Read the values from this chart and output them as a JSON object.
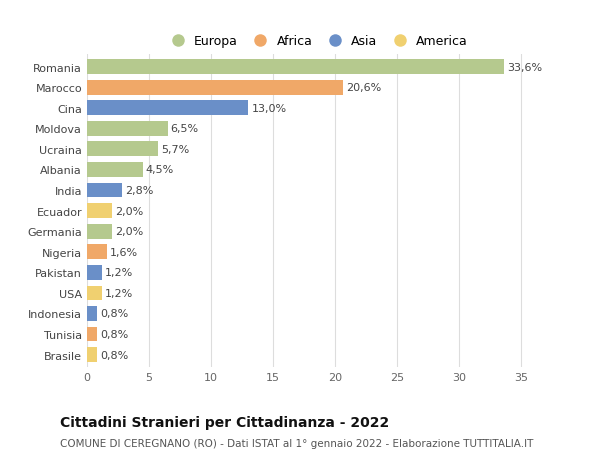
{
  "categories": [
    "Romania",
    "Marocco",
    "Cina",
    "Moldova",
    "Ucraina",
    "Albania",
    "India",
    "Ecuador",
    "Germania",
    "Nigeria",
    "Pakistan",
    "USA",
    "Indonesia",
    "Tunisia",
    "Brasile"
  ],
  "values": [
    33.6,
    20.6,
    13.0,
    6.5,
    5.7,
    4.5,
    2.8,
    2.0,
    2.0,
    1.6,
    1.2,
    1.2,
    0.8,
    0.8,
    0.8
  ],
  "labels": [
    "33,6%",
    "20,6%",
    "13,0%",
    "6,5%",
    "5,7%",
    "4,5%",
    "2,8%",
    "2,0%",
    "2,0%",
    "1,6%",
    "1,2%",
    "1,2%",
    "0,8%",
    "0,8%",
    "0,8%"
  ],
  "continents": [
    "Europa",
    "Africa",
    "Asia",
    "Europa",
    "Europa",
    "Europa",
    "Asia",
    "America",
    "Europa",
    "Africa",
    "Asia",
    "America",
    "Asia",
    "Africa",
    "America"
  ],
  "continent_colors": {
    "Europa": "#b5c98e",
    "Africa": "#f0a868",
    "Asia": "#6a8fc8",
    "America": "#f0d070"
  },
  "legend_entries": [
    "Europa",
    "Africa",
    "Asia",
    "America"
  ],
  "bar_height": 0.72,
  "xlim": [
    0,
    37
  ],
  "xticks": [
    0,
    5,
    10,
    15,
    20,
    25,
    30,
    35
  ],
  "title": "Cittadini Stranieri per Cittadinanza - 2022",
  "subtitle": "COMUNE DI CEREGNANO (RO) - Dati ISTAT al 1° gennaio 2022 - Elaborazione TUTTITALIA.IT",
  "background_color": "#ffffff",
  "grid_color": "#dddddd",
  "label_fontsize": 8,
  "tick_fontsize": 8,
  "title_fontsize": 10,
  "subtitle_fontsize": 7.5
}
